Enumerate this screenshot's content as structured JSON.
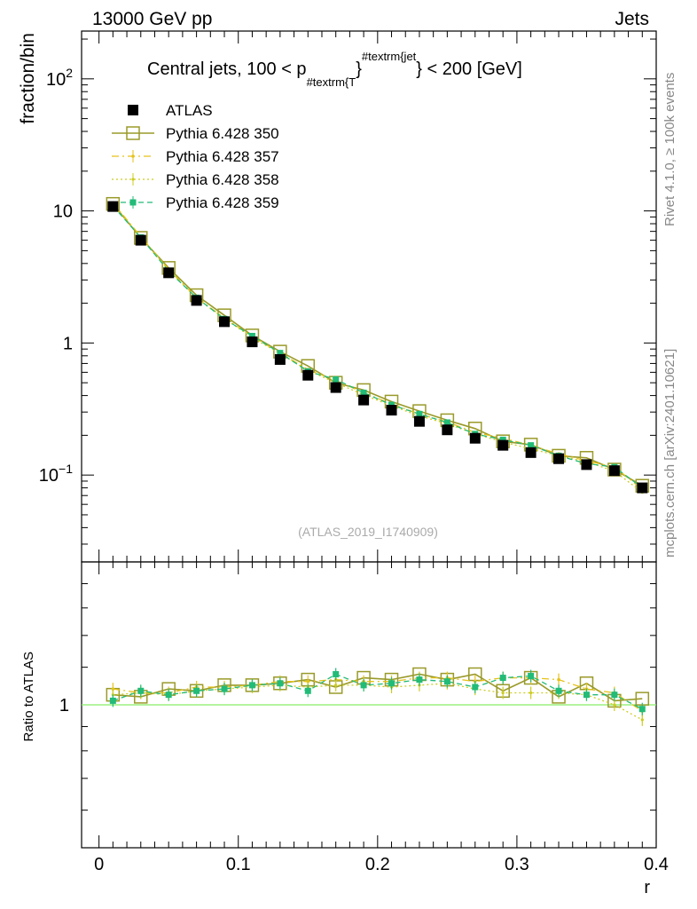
{
  "header": {
    "left": "13000 GeV pp",
    "right": "Jets"
  },
  "side_labels": {
    "top": "Rivet 4.1.0, ≥ 100k events",
    "bottom": "mcplots.cern.ch [arXiv:2401.10621]"
  },
  "watermark": "(ATLAS_2019_I1740909)",
  "colors": {
    "atlas": "#000000",
    "p350": "#9a9a2a",
    "p357": "#e6c21a",
    "p358": "#cccc22",
    "p359": "#22bb77",
    "ref_line": "#88ee66"
  },
  "chart_data": [
    {
      "type": "scatter",
      "panel": "main",
      "title": "Central jets, 100 < p",
      "title_sub": "#textrm{T",
      "title_sup": "#textrm{jet",
      "title_tail": "} < 200 [GeV]",
      "title_mid": "}",
      "ylabel": "fraction/bin",
      "yscale": "log",
      "ylim": [
        0.022,
        230
      ],
      "xlim": [
        -0.0125,
        0.4
      ],
      "y_ticks": [
        {
          "value": 0.1,
          "base": "10",
          "exp": "−1"
        },
        {
          "value": 1,
          "base": "1",
          "exp": ""
        },
        {
          "value": 10,
          "base": "10",
          "exp": ""
        },
        {
          "value": 100,
          "base": "10",
          "exp": "2"
        }
      ],
      "x": [
        0.01,
        0.03,
        0.05,
        0.07,
        0.09,
        0.11,
        0.13,
        0.15,
        0.17,
        0.19,
        0.21,
        0.23,
        0.25,
        0.27,
        0.29,
        0.31,
        0.33,
        0.35,
        0.37,
        0.39
      ],
      "series": [
        {
          "name": "ATLAS",
          "key": "atlas",
          "values": [
            10.8,
            6.0,
            3.4,
            2.1,
            1.45,
            1.02,
            0.75,
            0.57,
            0.46,
            0.37,
            0.31,
            0.255,
            0.22,
            0.19,
            0.168,
            0.148,
            0.133,
            0.12,
            0.108,
            0.08
          ]
        },
        {
          "name": "Pythia 6.428 350",
          "key": "p350",
          "values": [
            11.3,
            6.25,
            3.7,
            2.3,
            1.62,
            1.14,
            0.86,
            0.67,
            0.5,
            0.44,
            0.36,
            0.305,
            0.26,
            0.225,
            0.18,
            0.17,
            0.14,
            0.135,
            0.11,
            0.083
          ]
        },
        {
          "name": "Pythia 6.428 357",
          "key": "p357",
          "values": [
            11.5,
            6.4,
            3.6,
            2.2,
            1.55,
            1.12,
            0.84,
            0.63,
            0.52,
            0.42,
            0.345,
            0.29,
            0.252,
            0.21,
            0.19,
            0.168,
            0.145,
            0.128,
            0.115,
            0.078
          ]
        },
        {
          "name": "Pythia 6.428 358",
          "key": "p358",
          "values": [
            11.2,
            6.3,
            3.55,
            2.18,
            1.53,
            1.1,
            0.83,
            0.62,
            0.5,
            0.405,
            0.335,
            0.28,
            0.245,
            0.205,
            0.178,
            0.158,
            0.14,
            0.126,
            0.107,
            0.074
          ]
        },
        {
          "name": "Pythia 6.428 359",
          "key": "p359",
          "values": [
            10.9,
            6.3,
            3.5,
            2.2,
            1.52,
            1.13,
            0.84,
            0.61,
            0.53,
            0.42,
            0.34,
            0.29,
            0.25,
            0.205,
            0.185,
            0.168,
            0.14,
            0.122,
            0.115,
            0.08
          ]
        }
      ]
    },
    {
      "type": "line",
      "panel": "ratio",
      "ylabel": "Ratio to ATLAS",
      "xlabel": "r",
      "yscale": "log",
      "ylim": [
        0.5,
        2.0
      ],
      "y_ticks": [
        {
          "value": 1,
          "label": "1"
        }
      ],
      "x_ticks": [
        {
          "value": 0,
          "label": "0"
        },
        {
          "value": 0.1,
          "label": "0.1"
        },
        {
          "value": 0.2,
          "label": "0.2"
        },
        {
          "value": 0.3,
          "label": "0.3"
        },
        {
          "value": 0.4,
          "label": "0.4"
        }
      ],
      "x": [
        0.01,
        0.03,
        0.05,
        0.07,
        0.09,
        0.11,
        0.13,
        0.15,
        0.17,
        0.19,
        0.21,
        0.23,
        0.25,
        0.27,
        0.29,
        0.31,
        0.33,
        0.35,
        0.37,
        0.39
      ],
      "series": [
        {
          "name": "Pythia 6.428 350",
          "key": "p350",
          "values": [
            1.05,
            1.04,
            1.08,
            1.07,
            1.1,
            1.1,
            1.11,
            1.13,
            1.09,
            1.14,
            1.13,
            1.16,
            1.13,
            1.16,
            1.07,
            1.14,
            1.04,
            1.11,
            1.02,
            1.03
          ]
        },
        {
          "name": "Pythia 6.428 357",
          "key": "p357",
          "values": [
            1.08,
            1.06,
            1.06,
            1.09,
            1.09,
            1.1,
            1.12,
            1.12,
            1.13,
            1.12,
            1.12,
            1.14,
            1.14,
            1.12,
            1.14,
            1.14,
            1.13,
            1.08,
            1.06,
            0.97
          ]
        },
        {
          "name": "Pythia 6.428 358",
          "key": "p358",
          "values": [
            1.05,
            1.06,
            1.05,
            1.07,
            1.08,
            1.09,
            1.1,
            1.09,
            1.1,
            1.1,
            1.09,
            1.1,
            1.11,
            1.08,
            1.06,
            1.06,
            1.06,
            1.05,
            1.0,
            0.93
          ]
        },
        {
          "name": "Pythia 6.428 359",
          "key": "p359",
          "values": [
            1.02,
            1.07,
            1.05,
            1.07,
            1.08,
            1.1,
            1.11,
            1.07,
            1.16,
            1.1,
            1.11,
            1.13,
            1.12,
            1.09,
            1.14,
            1.15,
            1.07,
            1.05,
            1.05,
            0.98
          ]
        }
      ]
    }
  ],
  "legend": [
    {
      "label": "ATLAS",
      "key": "atlas"
    },
    {
      "label": "Pythia 6.428 350",
      "key": "p350"
    },
    {
      "label": "Pythia 6.428 357",
      "key": "p357"
    },
    {
      "label": "Pythia 6.428 358",
      "key": "p358"
    },
    {
      "label": "Pythia 6.428 359",
      "key": "p359"
    }
  ]
}
